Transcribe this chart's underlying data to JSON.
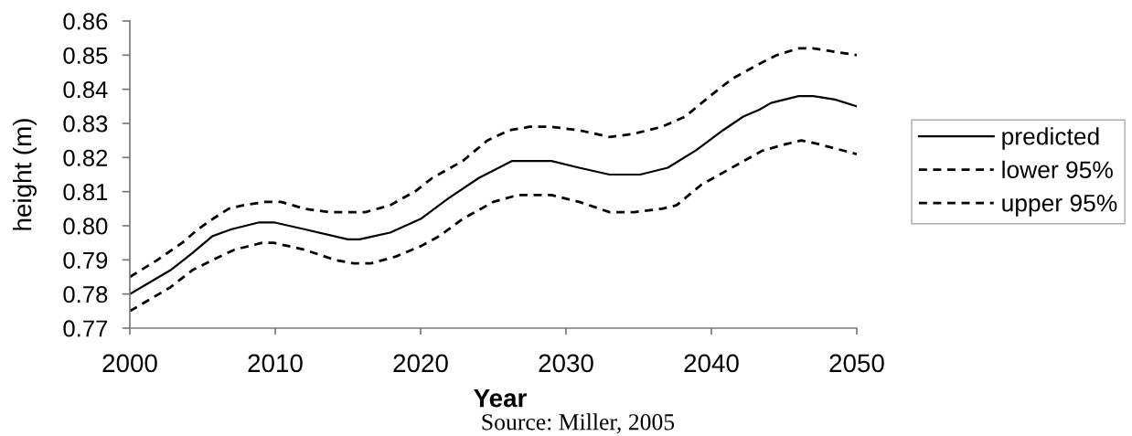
{
  "chart_data": {
    "type": "line",
    "xlabel": "Year",
    "ylabel": "height (m)",
    "annotations": [
      "Source: Miller, 2005"
    ],
    "xlim": [
      2000,
      2050
    ],
    "xticks": [
      2000,
      2010,
      2020,
      2030,
      2040,
      2050
    ],
    "ylim": [
      0.77,
      0.86
    ],
    "yticks": [
      0.77,
      0.78,
      0.79,
      {
        "value": 0.8,
        "label": "0.80"
      },
      0.81,
      0.82,
      0.83,
      0.84,
      0.85,
      0.86
    ],
    "legend": "right",
    "series": [
      {
        "name": "predicted",
        "color": "#000000",
        "line_style": "solid",
        "x": [
          2000,
          2001.6,
          2002.8,
          2004.3,
          2005.7,
          2007.0,
          2008.9,
          2009.9,
          2012.0,
          2015.0,
          2015.8,
          2017.9,
          2020.0,
          2021.9,
          2024.0,
          2026.3,
          2027.1,
          2029.0,
          2030.9,
          2033.0,
          2035.1,
          2037.0,
          2038.9,
          2040.8,
          2042.2,
          2043.3,
          2044.1,
          2046.0,
          2047.0,
          2048.5,
          2050
        ],
        "values": [
          0.78,
          0.784,
          0.787,
          0.792,
          0.797,
          0.799,
          0.801,
          0.801,
          0.799,
          0.796,
          0.796,
          0.798,
          0.802,
          0.808,
          0.814,
          0.819,
          0.819,
          0.819,
          0.817,
          0.815,
          0.815,
          0.817,
          0.822,
          0.828,
          0.832,
          0.834,
          0.836,
          0.838,
          0.838,
          0.837,
          0.835
        ]
      },
      {
        "name": "lower 95%",
        "color": "#000000",
        "line_style": "dashed",
        "x": [
          2000,
          2001.6,
          2002.8,
          2004.3,
          2005.7,
          2007.2,
          2009.1,
          2009.9,
          2012.0,
          2014.1,
          2015.4,
          2016.6,
          2018.3,
          2020.0,
          2021.3,
          2022.9,
          2025.0,
          2026.7,
          2029.0,
          2030.9,
          2033.0,
          2034.7,
          2036.6,
          2037.6,
          2039.3,
          2041.4,
          2043.5,
          2045.2,
          2046.2,
          2047.3,
          2050
        ],
        "values": [
          0.775,
          0.779,
          0.782,
          0.787,
          0.79,
          0.793,
          0.795,
          0.795,
          0.793,
          0.79,
          0.789,
          0.789,
          0.791,
          0.794,
          0.797,
          0.802,
          0.807,
          0.809,
          0.809,
          0.807,
          0.804,
          0.804,
          0.805,
          0.806,
          0.812,
          0.817,
          0.822,
          0.824,
          0.825,
          0.824,
          0.821
        ]
      },
      {
        "name": "upper 95%",
        "color": "#000000",
        "line_style": "dashed",
        "x": [
          2000,
          2001.9,
          2003.6,
          2004.7,
          2005.7,
          2006.8,
          2007.8,
          2009.3,
          2010.4,
          2012.0,
          2013.7,
          2015.2,
          2016.2,
          2017.9,
          2019.6,
          2020.8,
          2022.9,
          2024.6,
          2026.1,
          2027.5,
          2029.0,
          2030.9,
          2033.0,
          2034.7,
          2036.6,
          2038.2,
          2039.9,
          2041.4,
          2043.1,
          2044.5,
          2046.0,
          2047.0,
          2048.5,
          2050
        ],
        "values": [
          0.785,
          0.79,
          0.795,
          0.799,
          0.802,
          0.805,
          0.806,
          0.807,
          0.807,
          0.805,
          0.804,
          0.804,
          0.804,
          0.806,
          0.81,
          0.814,
          0.819,
          0.825,
          0.828,
          0.829,
          0.829,
          0.828,
          0.826,
          0.827,
          0.829,
          0.832,
          0.838,
          0.843,
          0.847,
          0.85,
          0.852,
          0.852,
          0.851,
          0.85
        ]
      }
    ]
  }
}
